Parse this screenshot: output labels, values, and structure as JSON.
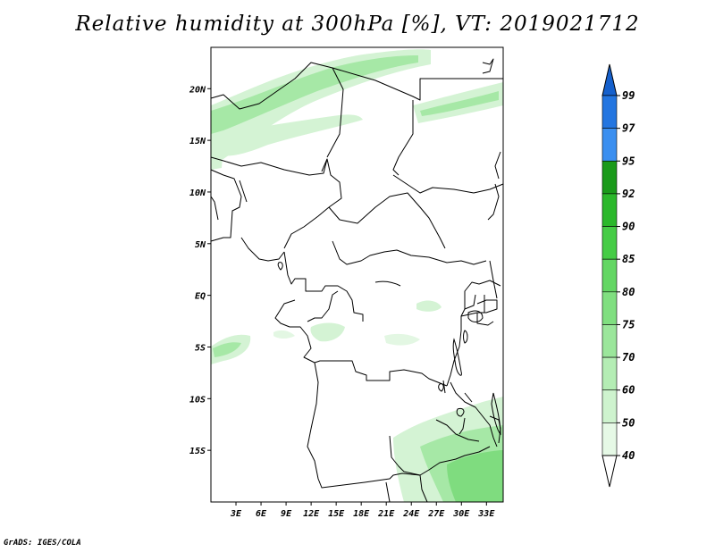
{
  "title": "Relative humidity at 300hPa [%], VT: 2019021712",
  "credit": "GrADS: IGES/COLA",
  "map": {
    "lon_range": [
      0,
      35
    ],
    "lat_range": [
      -20,
      24
    ],
    "y_ticks": [
      {
        "lat": 20,
        "label": "20N"
      },
      {
        "lat": 15,
        "label": "15N"
      },
      {
        "lat": 10,
        "label": "10N"
      },
      {
        "lat": 5,
        "label": "5N"
      },
      {
        "lat": 0,
        "label": "EQ"
      },
      {
        "lat": -5,
        "label": "5S"
      },
      {
        "lat": -10,
        "label": "10S"
      },
      {
        "lat": -15,
        "label": "15S"
      }
    ],
    "x_ticks": [
      {
        "lon": 3,
        "label": "3E"
      },
      {
        "lon": 6,
        "label": "6E"
      },
      {
        "lon": 9,
        "label": "9E"
      },
      {
        "lon": 12,
        "label": "12E"
      },
      {
        "lon": 15,
        "label": "15E"
      },
      {
        "lon": 18,
        "label": "18E"
      },
      {
        "lon": 21,
        "label": "21E"
      },
      {
        "lon": 24,
        "label": "24E"
      },
      {
        "lon": 27,
        "label": "27E"
      },
      {
        "lon": 30,
        "label": "30E"
      },
      {
        "lon": 33,
        "label": "33E"
      }
    ]
  },
  "colorbar": {
    "levels": [
      "40",
      "50",
      "60",
      "70",
      "75",
      "80",
      "85",
      "90",
      "92",
      "95",
      "97",
      "99"
    ],
    "colors": [
      "#ffffff",
      "#e6f9e6",
      "#cef3ce",
      "#b4edb4",
      "#9be69b",
      "#80df80",
      "#63d663",
      "#46cc46",
      "#2bb82b",
      "#1a9a1a",
      "#3b8ff0",
      "#2375e0",
      "#1560cc"
    ]
  },
  "fields": {
    "light_green": "#d4f3d4",
    "mid_green": "#a6e8a6",
    "deep_green": "#7fdc7f"
  }
}
